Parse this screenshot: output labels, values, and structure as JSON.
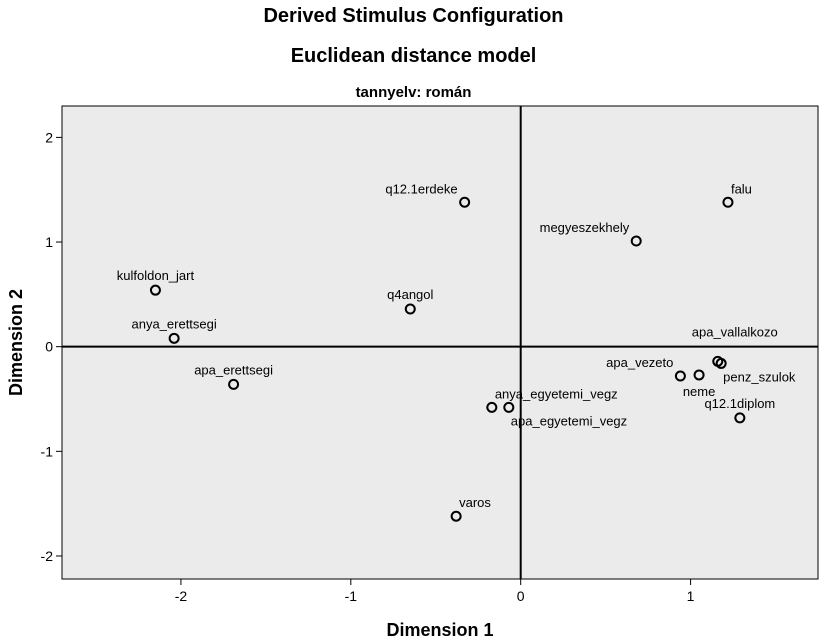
{
  "chart_data": {
    "type": "scatter",
    "title": "Derived Stimulus Configuration",
    "subtitle": "Euclidean distance model",
    "panel_title": "tannyelv: román",
    "xlabel": "Dimension 1",
    "ylabel": "Dimension 2",
    "xlim": [
      -2.7,
      1.75
    ],
    "ylim": [
      -2.22,
      2.3
    ],
    "xticks": [
      -2,
      -1,
      0,
      1
    ],
    "yticks": [
      -2,
      -1,
      0,
      1,
      2
    ],
    "reference_lines": {
      "x": 0,
      "y": 0
    },
    "grid": false,
    "background_color": "#ebebeb",
    "points": [
      {
        "label": "q12.1erdeke",
        "x": -0.33,
        "y": 1.38,
        "label_pos": "above-left"
      },
      {
        "label": "falu",
        "x": 1.22,
        "y": 1.38,
        "label_pos": "above-right"
      },
      {
        "label": "megyeszekhely",
        "x": 0.68,
        "y": 1.01,
        "label_pos": "above-left"
      },
      {
        "label": "kulfoldon_jart",
        "x": -2.15,
        "y": 0.54,
        "label_pos": "above-center"
      },
      {
        "label": "q4angol",
        "x": -0.65,
        "y": 0.36,
        "label_pos": "above-center"
      },
      {
        "label": "anya_erettsegi",
        "x": -2.04,
        "y": 0.08,
        "label_pos": "above-center"
      },
      {
        "label": "apa_erettsegi",
        "x": -1.69,
        "y": -0.36,
        "label_pos": "above-center"
      },
      {
        "label": "apa_vallalkozo",
        "x": 1.16,
        "y": -0.14,
        "label_pos": "above-right-far"
      },
      {
        "label": "apa_vezeto",
        "x": 0.94,
        "y": -0.28,
        "label_pos": "above-left"
      },
      {
        "label": "penz_szulok",
        "x": 1.18,
        "y": -0.16,
        "label_pos": "below-right"
      },
      {
        "label": "neme",
        "x": 1.05,
        "y": -0.27,
        "label_pos": "below-center"
      },
      {
        "label": "q12.1diplom",
        "x": 1.29,
        "y": -0.68,
        "label_pos": "above-center"
      },
      {
        "label": "anya_egyetemi_vegz",
        "x": -0.17,
        "y": -0.58,
        "label_pos": "above-right"
      },
      {
        "label": "apa_egyetemi_vegz",
        "x": -0.07,
        "y": -0.58,
        "label_pos": "below-right"
      },
      {
        "label": "varos",
        "x": -0.38,
        "y": -1.62,
        "label_pos": "above-right"
      }
    ]
  }
}
